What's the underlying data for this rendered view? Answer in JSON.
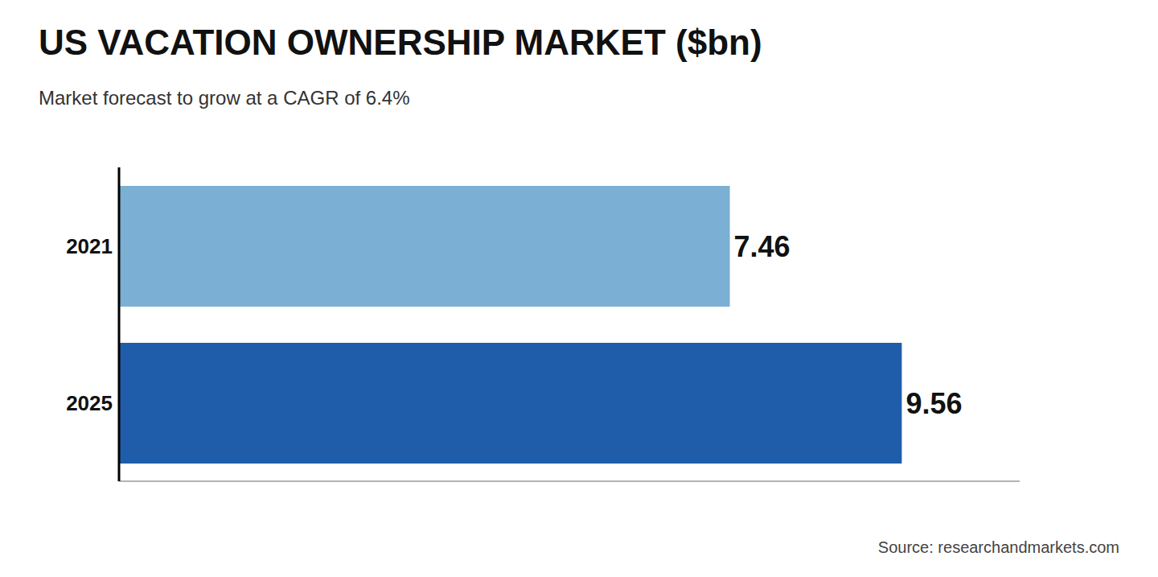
{
  "chart_data": {
    "type": "bar",
    "orientation": "horizontal",
    "title": "US VACATION OWNERSHIP MARKET ($bn)",
    "subtitle": "Market forecast to grow at a CAGR of 6.4%",
    "categories": [
      "2021",
      "2025"
    ],
    "values": [
      7.46,
      9.56
    ],
    "colors": [
      "#7bafd4",
      "#1f5daa"
    ],
    "xlim": [
      0,
      11
    ],
    "data_labels": true,
    "tick_labels": "y",
    "grid": false,
    "annotations": [
      "Source: researchandmarkets.com"
    ]
  }
}
